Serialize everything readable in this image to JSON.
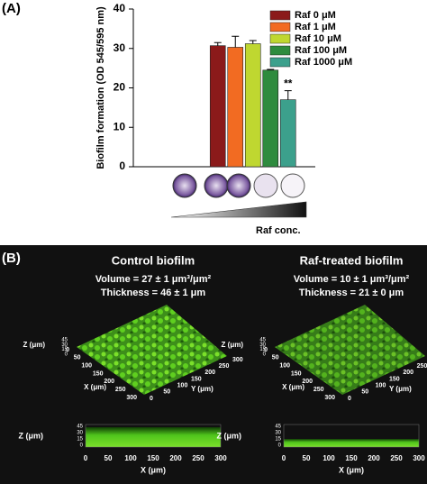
{
  "chart_data": {
    "type": "bar",
    "panel_label": "(A)",
    "y_label": "Biofilm formation (OD 545/595 nm)",
    "categories": [
      null
    ],
    "series": [
      {
        "name": "Raf 0 μM",
        "color": "#8b1a1a",
        "values": [
          30.7
        ],
        "errors": [
          0.8
        ]
      },
      {
        "name": "Raf 1 μM",
        "color": "#f26b22",
        "values": [
          30.3
        ],
        "errors": [
          2.8
        ]
      },
      {
        "name": "Raf 10 μM",
        "color": "#bfd730",
        "values": [
          31.2
        ],
        "errors": [
          0.8
        ]
      },
      {
        "name": "Raf 100 μM",
        "color": "#2e8b3e",
        "values": [
          24.5
        ],
        "errors": [
          0.2
        ]
      },
      {
        "name": "Raf 1000 μM",
        "color": "#3ca08c",
        "values": [
          17.0
        ],
        "errors": [
          2.3
        ]
      }
    ],
    "annotation": "**",
    "gradient_label": "Raf conc.",
    "ylim": [
      0,
      40
    ],
    "yticks": [
      0,
      10,
      20,
      30,
      40
    ],
    "legend": "upper right"
  },
  "panel_b": {
    "label": "(B)",
    "panels": [
      {
        "title": "Control biofilm",
        "volume": "Volume = 27 ± 1 μm³/μm²",
        "thickness": "Thickness = 46 ± 1 μm",
        "perspective": {
          "z_label": "Z (μm)",
          "z_ticks": [
            "45",
            "30",
            "15",
            "0"
          ],
          "x_label": "X (μm)",
          "x_ticks": [
            "0",
            "50",
            "100",
            "150",
            "200",
            "250",
            "300"
          ],
          "y_label": "Y (μm)",
          "y_ticks": [
            "0",
            "50",
            "100",
            "150",
            "200",
            "250",
            "300"
          ]
        },
        "side": {
          "z_label": "Z (μm)",
          "z_ticks": [
            "45",
            "30",
            "15",
            "0"
          ],
          "x_label": "X (μm)",
          "x_ticks": [
            "0",
            "50",
            "100",
            "150",
            "200",
            "250",
            "300"
          ]
        }
      },
      {
        "title": "Raf-treated biofilm",
        "volume": "Volume = 10 ± 1 μm³/μm²",
        "thickness": "Thickness = 21 ± 0 μm",
        "perspective": {
          "z_label": "Z (μm)",
          "z_ticks": [
            "45",
            "30",
            "15",
            "0"
          ],
          "x_label": "X (μm)",
          "x_ticks": [
            "0",
            "50",
            "100",
            "150",
            "200",
            "250",
            "300"
          ],
          "y_label": "Y (μm)",
          "y_ticks": [
            "0",
            "50",
            "100",
            "150",
            "200",
            "250",
            "300"
          ]
        },
        "side": {
          "z_label": "Z (μm)",
          "z_ticks": [
            "45",
            "30",
            "15",
            "0"
          ],
          "x_label": "X (μm)",
          "x_ticks": [
            "0",
            "50",
            "100",
            "150",
            "200",
            "250",
            "300"
          ]
        }
      }
    ]
  }
}
